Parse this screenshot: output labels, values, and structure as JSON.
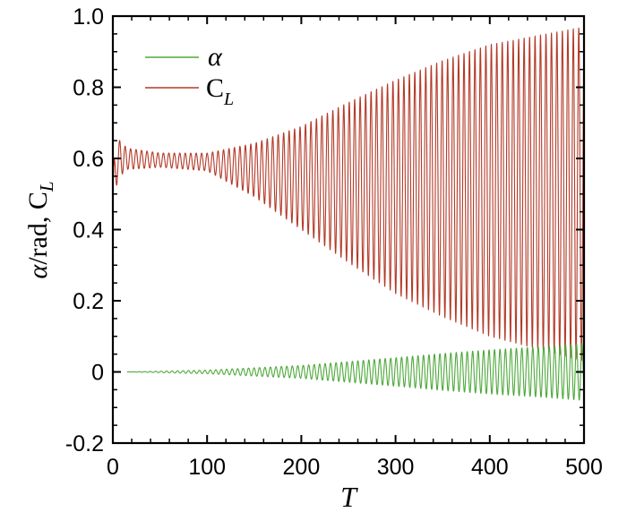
{
  "chart_data": {
    "type": "line",
    "xlabel": "T",
    "ylabel_parts": {
      "alpha": "α",
      "rad": "/rad, C",
      "sub": "L"
    },
    "xlim": [
      0,
      500
    ],
    "ylim": [
      -0.2,
      1.0
    ],
    "x_ticks": [
      "0",
      "100",
      "200",
      "300",
      "400",
      "500"
    ],
    "y_ticks": [
      "-0.2",
      "0",
      "0.2",
      "0.4",
      "0.6",
      "0.8",
      "1.0"
    ],
    "x_tick_values": [
      0,
      100,
      200,
      300,
      400,
      500
    ],
    "y_tick_values": [
      -0.2,
      0,
      0.2,
      0.4,
      0.6,
      0.8,
      1.0
    ],
    "grid": false,
    "legend_position": "top-left",
    "series": [
      {
        "name": "α",
        "legend_label": "α",
        "color": "#4da83a",
        "start": 15,
        "end": 500,
        "period": 5.8,
        "mean": [
          [
            15,
            0.0
          ],
          [
            500,
            0.0
          ]
        ],
        "amplitude": [
          [
            15,
            0.0
          ],
          [
            50,
            0.002
          ],
          [
            100,
            0.005
          ],
          [
            200,
            0.018
          ],
          [
            300,
            0.04
          ],
          [
            350,
            0.052
          ],
          [
            400,
            0.062
          ],
          [
            450,
            0.07
          ],
          [
            500,
            0.08
          ]
        ]
      },
      {
        "name": "C_L",
        "legend_label": "C",
        "legend_sub": "L",
        "color": "#b33a28",
        "start": 0,
        "end": 500,
        "period": 5.8,
        "mean": [
          [
            0,
            0.5
          ],
          [
            5,
            0.6
          ],
          [
            100,
            0.59
          ],
          [
            200,
            0.545
          ],
          [
            300,
            0.52
          ],
          [
            400,
            0.51
          ],
          [
            500,
            0.5
          ]
        ],
        "amplitude": [
          [
            0,
            0.07
          ],
          [
            15,
            0.03
          ],
          [
            50,
            0.02
          ],
          [
            100,
            0.025
          ],
          [
            150,
            0.075
          ],
          [
            200,
            0.145
          ],
          [
            250,
            0.225
          ],
          [
            300,
            0.3
          ],
          [
            350,
            0.36
          ],
          [
            400,
            0.41
          ],
          [
            450,
            0.44
          ],
          [
            500,
            0.47
          ]
        ]
      }
    ]
  }
}
